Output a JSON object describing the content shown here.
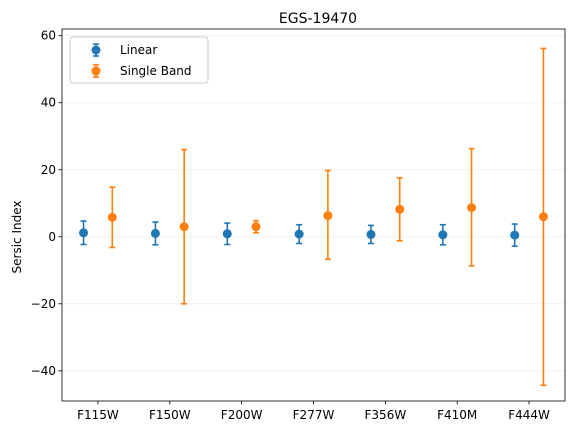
{
  "chart_data": {
    "type": "scatter",
    "title": "EGS-19470",
    "xlabel": "",
    "ylabel": "Sersic Index",
    "categories": [
      "F115W",
      "F150W",
      "F200W",
      "F277W",
      "F356W",
      "F410M",
      "F444W"
    ],
    "ylim": [
      -49,
      62
    ],
    "yticks": [
      -40,
      -20,
      0,
      20,
      40,
      60
    ],
    "grid": "y-only-faint",
    "legend_position": "top-left",
    "series": [
      {
        "name": "Linear",
        "color": "#1f77b4",
        "values": [
          1.2,
          1.0,
          0.9,
          0.8,
          0.7,
          0.6,
          0.5
        ],
        "err_low": [
          3.5,
          3.4,
          3.2,
          2.8,
          2.7,
          3.0,
          3.3
        ],
        "err_high": [
          3.5,
          3.4,
          3.2,
          2.8,
          2.7,
          3.0,
          3.3
        ]
      },
      {
        "name": "Single Band",
        "color": "#ff7f0e",
        "values": [
          5.8,
          3.0,
          3.0,
          6.3,
          8.2,
          8.7,
          6.0
        ],
        "err_low": [
          9.0,
          23.0,
          1.8,
          13.0,
          9.4,
          17.4,
          50.3
        ],
        "err_high": [
          9.0,
          23.0,
          1.8,
          13.5,
          9.4,
          17.6,
          50.2
        ]
      }
    ]
  }
}
